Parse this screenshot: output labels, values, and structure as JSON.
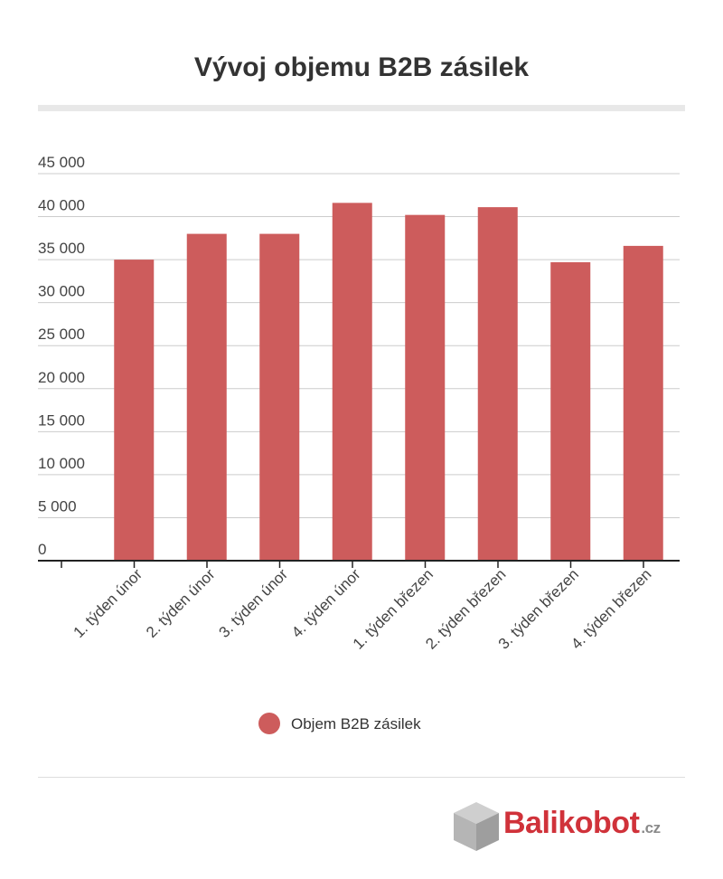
{
  "chart_data": {
    "type": "bar",
    "title": "Vývoj objemu B2B zásilek",
    "categories": [
      "1. týden únor",
      "2. týden únor",
      "3. týden únor",
      "4. týden únor",
      "1. týden březen",
      "2. týden březen",
      "3. týden březen",
      "4. týden březen"
    ],
    "series": [
      {
        "name": "Objem B2B zásilek",
        "values": [
          35000,
          38000,
          38000,
          41600,
          40200,
          41100,
          34700,
          36600
        ]
      }
    ],
    "ylim": [
      0,
      45000
    ],
    "yticks": [
      0,
      5000,
      10000,
      15000,
      20000,
      25000,
      30000,
      35000,
      40000,
      45000
    ],
    "ytick_labels": [
      "0",
      "5 000",
      "10 000",
      "15 000",
      "20 000",
      "25 000",
      "30 000",
      "35 000",
      "40 000",
      "45 000"
    ],
    "grid": true,
    "legend": "bottom-center",
    "colors": {
      "bar": "#cd5c5c",
      "grid": "#cccccc",
      "axis": "#222222",
      "text": "#444444"
    }
  },
  "logo": {
    "name": "Balikobot",
    "tld": ".cz",
    "colors": {
      "text": "#d0323a",
      "box": "#bdbdbd"
    }
  }
}
